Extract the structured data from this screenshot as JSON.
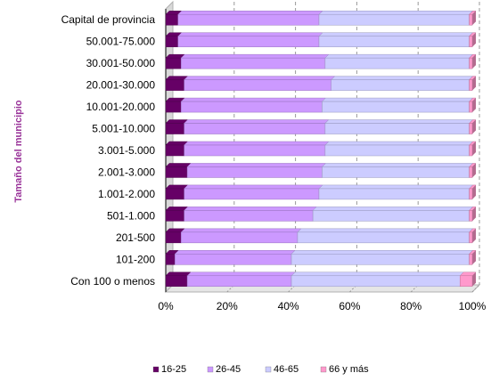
{
  "chart_data": {
    "type": "bar",
    "orientation": "horizontal",
    "stacked": "percent",
    "ylabel": "Tamaño del municipio",
    "categories": [
      "Capital de provincia",
      "50.001-75.000",
      "30.001-50.000",
      "20.001-30.000",
      "10.001-20.000",
      "5.001-10.000",
      "3.001-5.000",
      "2.001-3.000",
      "1.001-2.000",
      "501-1.000",
      "201-500",
      "101-200",
      "Con 100 o menos"
    ],
    "series": [
      {
        "name": "16-25",
        "color": "#660066",
        "values": [
          4,
          4,
          5,
          6,
          5,
          6,
          6,
          7,
          6,
          6,
          5,
          3,
          7
        ]
      },
      {
        "name": "26-45",
        "color": "#cc99ff",
        "values": [
          46,
          46,
          47,
          48,
          46,
          46,
          46,
          44,
          44,
          42,
          38,
          38,
          34
        ]
      },
      {
        "name": "46-65",
        "color": "#ccccff",
        "values": [
          49,
          49,
          47,
          45,
          48,
          47,
          47,
          48,
          49,
          51,
          56,
          58,
          55
        ]
      },
      {
        "name": "66 y más",
        "color": "#ff99cc",
        "values": [
          1,
          1,
          1,
          1,
          1,
          1,
          1,
          1,
          1,
          1,
          1,
          1,
          4
        ]
      }
    ],
    "xticks": [
      "0%",
      "20%",
      "40%",
      "60%",
      "80%",
      "100%"
    ],
    "xlim": [
      0,
      100
    ],
    "grid": "vertical dashed",
    "legend_position": "bottom"
  }
}
